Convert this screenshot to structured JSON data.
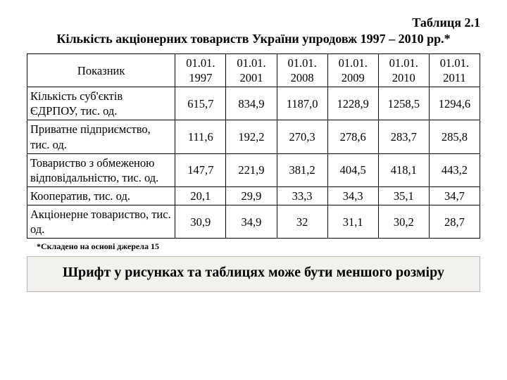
{
  "header": {
    "table_number": "Таблиця 2.1",
    "caption": "Кількість акціонерних товариств України упродовж 1997 – 2010 рр.*"
  },
  "table": {
    "type": "table",
    "columns": [
      "Показник",
      "01.01. 1997",
      "01.01. 2001",
      "01.01. 2008",
      "01.01. 2009",
      "01.01. 2010",
      "01.01. 2011"
    ],
    "rows": [
      {
        "label": "Кількість суб'єктів ЄДРПОУ, тис. од.",
        "values": [
          "615,7",
          "834,9",
          "1187,0",
          "1228,9",
          "1258,5",
          "1294,6"
        ]
      },
      {
        "label": "Приватне підприємство, тис. од.",
        "values": [
          "111,6",
          "192,2",
          "270,3",
          "278,6",
          "283,7",
          "285,8"
        ]
      },
      {
        "label": "Товариство з обмеженою відповідальністю, тис. од.",
        "values": [
          "147,7",
          "221,9",
          "381,2",
          "404,5",
          "418,1",
          "443,2"
        ]
      },
      {
        "label": "Кооператив, тис. од.",
        "values": [
          "20,1",
          "29,9",
          "33,3",
          "34,3",
          "35,1",
          "34,7"
        ]
      },
      {
        "label": "Акціонерне товариство, тис. од.",
        "values": [
          "30,9",
          "34,9",
          "32",
          "31,1",
          "30,2",
          "28,7"
        ]
      }
    ],
    "border_color": "#000000",
    "font_size_pt": 12,
    "background_color": "#ffffff"
  },
  "footnote": "*Складено на основі джерела 15",
  "note_box": {
    "text": "Шрифт у рисунках та таблицях може бути меншого розміру",
    "background_color": "#f3f1ec",
    "border_color": "#b8b4ad"
  }
}
